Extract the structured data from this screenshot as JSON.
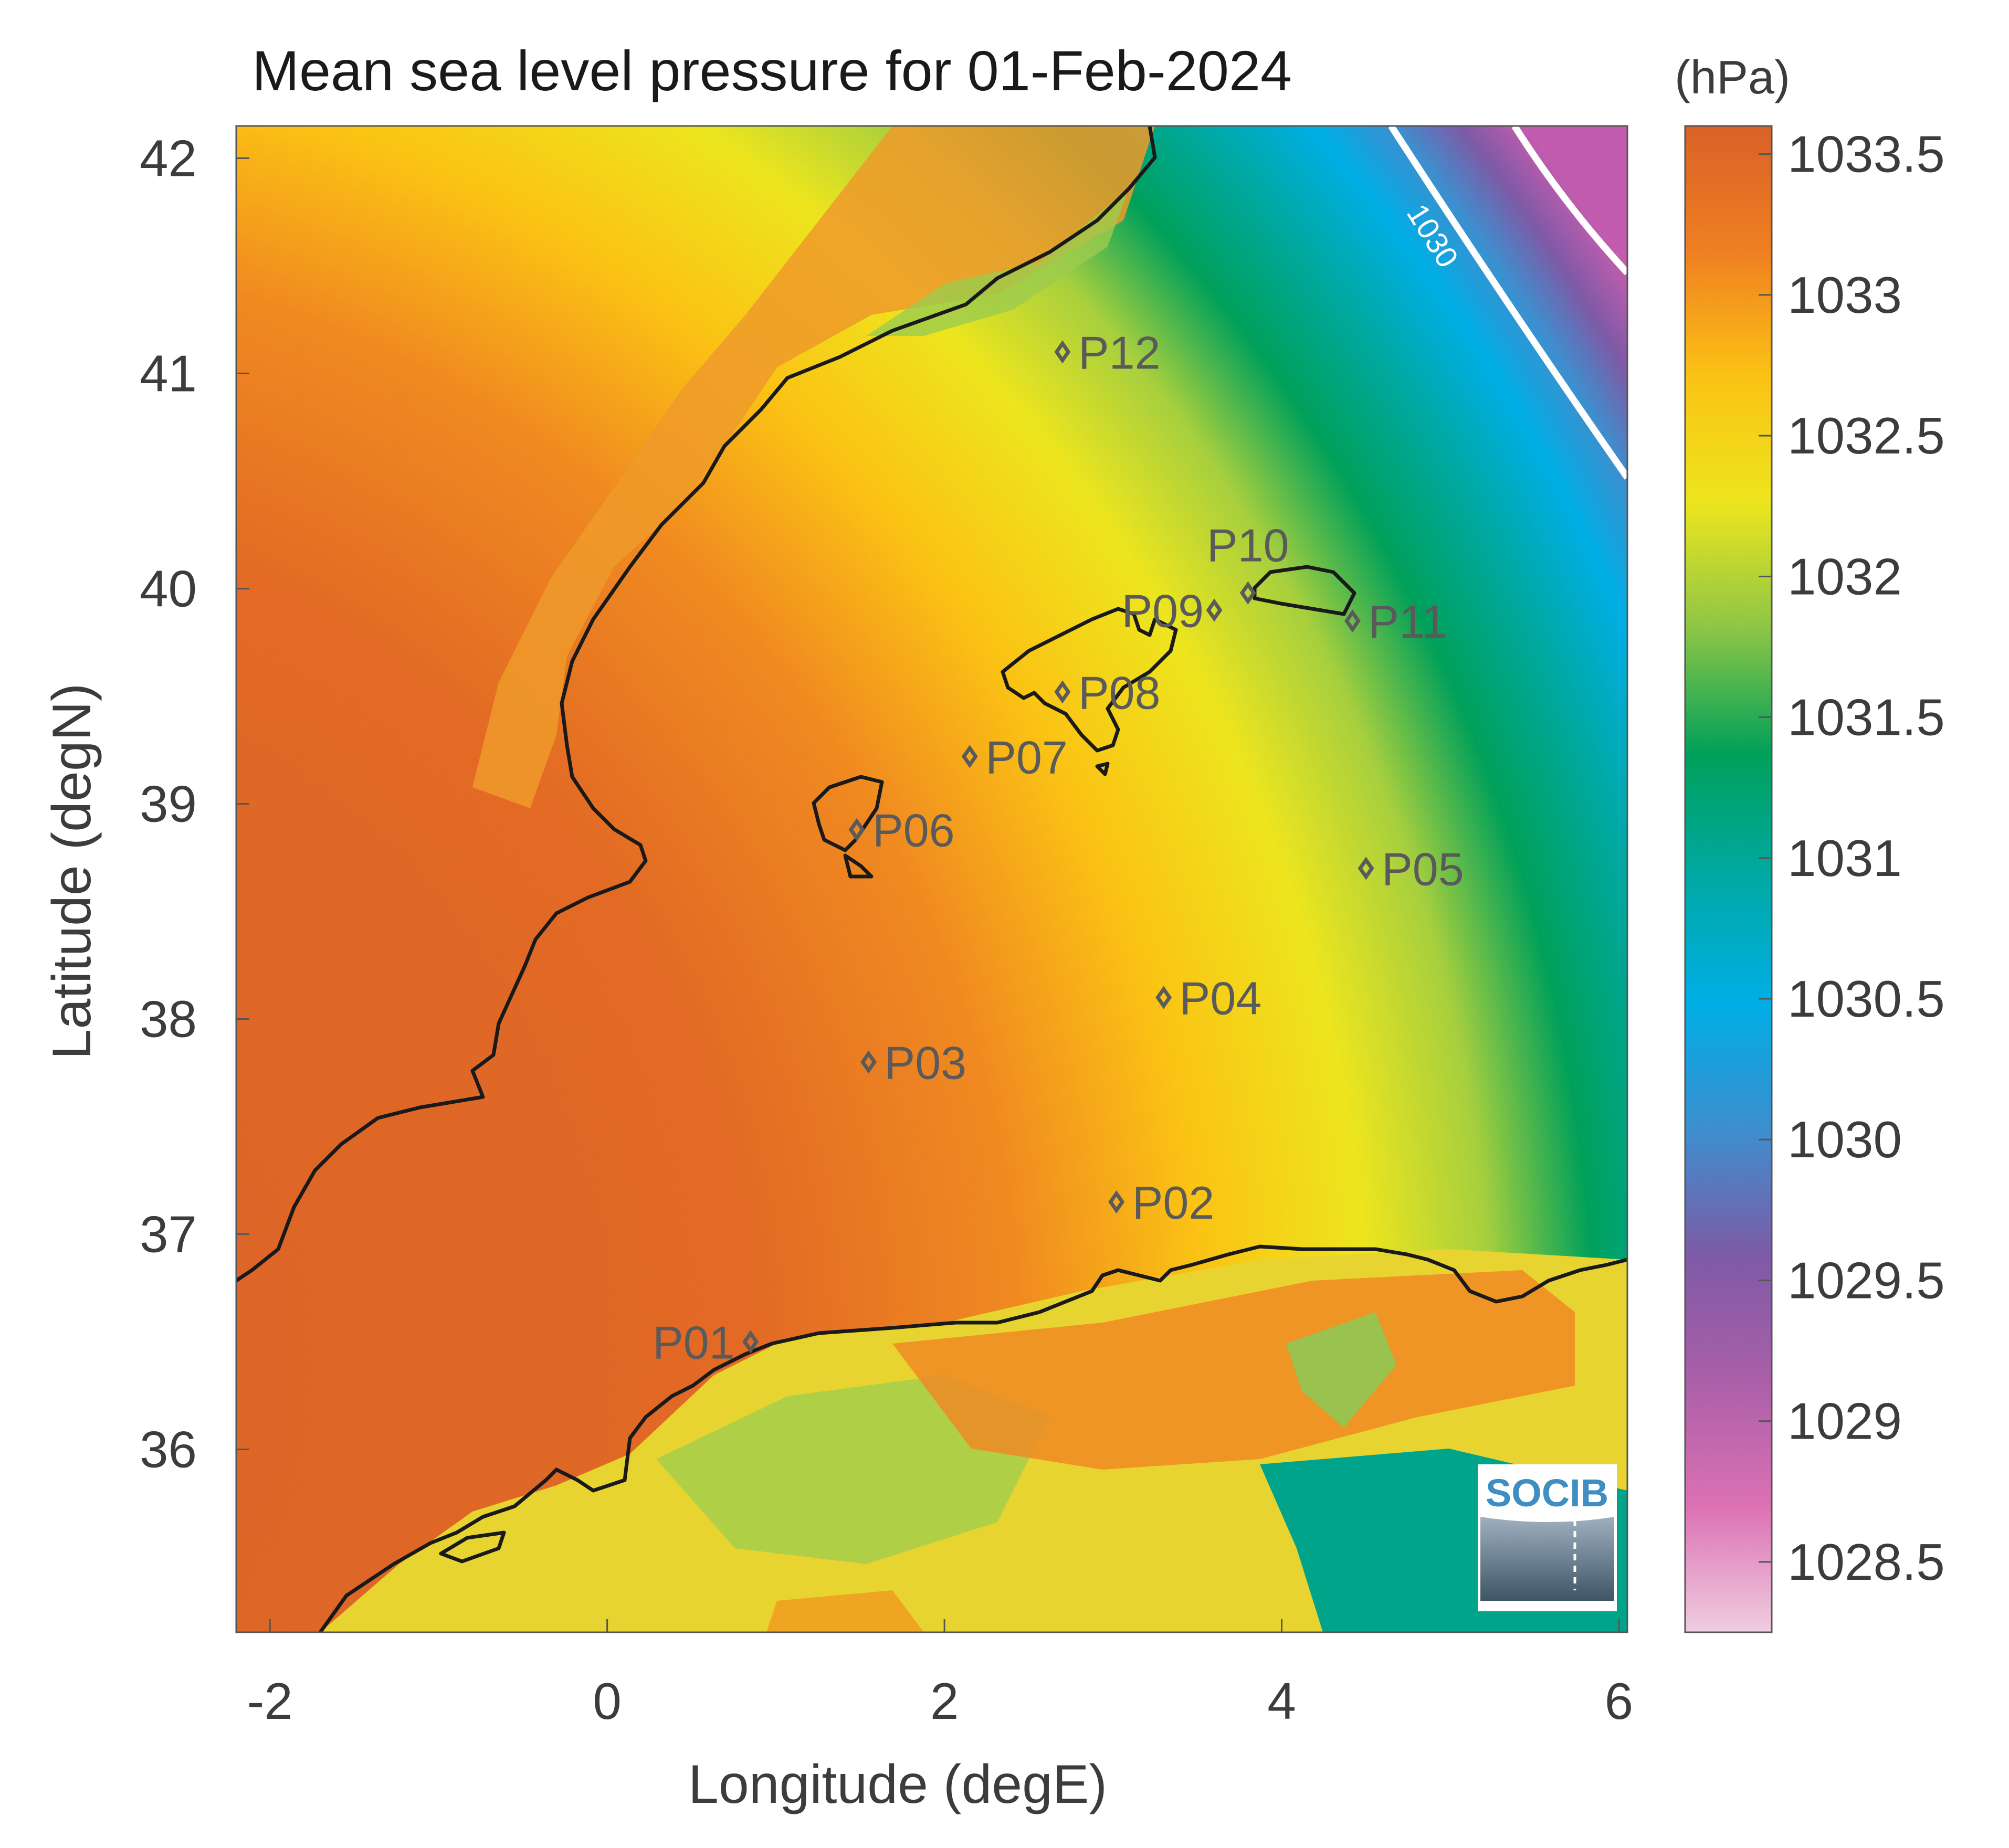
{
  "title": "Mean sea level pressure for 01-Feb-2024",
  "colorbar": {
    "unit": "(hPa)",
    "range": [
      1028.25,
      1033.6
    ],
    "ticks": [
      "1033.5",
      "1033",
      "1032.5",
      "1032",
      "1031.5",
      "1031",
      "1030.5",
      "1030",
      "1029.5",
      "1029",
      "1028.5"
    ],
    "colors": [
      "#f0cde0",
      "#dc72b4",
      "#aa5fa8",
      "#7e5aa6",
      "#3e8ece",
      "#00aee6",
      "#00a9a5",
      "#00a05a",
      "#8dc646",
      "#ede51e",
      "#fbc314",
      "#ef7f22",
      "#d96128"
    ]
  },
  "x_axis": {
    "label": "Longitude (degE)",
    "range": [
      -2.2,
      6.05
    ],
    "ticks": [
      "-2",
      "0",
      "2",
      "4",
      "6"
    ]
  },
  "y_axis": {
    "label": "Latitude (degN)",
    "range": [
      35.15,
      42.15
    ],
    "ticks": [
      "42",
      "41",
      "40",
      "39",
      "38",
      "37",
      "36"
    ]
  },
  "contour": {
    "label": "1030"
  },
  "stations": [
    {
      "id": "P01",
      "lon": 0.85,
      "lat": 36.5
    },
    {
      "id": "P02",
      "lon": 3.02,
      "lat": 37.15
    },
    {
      "id": "P03",
      "lon": 1.55,
      "lat": 37.8
    },
    {
      "id": "P04",
      "lon": 3.3,
      "lat": 38.1
    },
    {
      "id": "P05",
      "lon": 4.5,
      "lat": 38.7
    },
    {
      "id": "P06",
      "lon": 1.48,
      "lat": 38.88
    },
    {
      "id": "P07",
      "lon": 2.15,
      "lat": 39.22
    },
    {
      "id": "P08",
      "lon": 2.7,
      "lat": 39.52
    },
    {
      "id": "P09",
      "lon": 3.6,
      "lat": 39.9
    },
    {
      "id": "P10",
      "lon": 3.8,
      "lat": 39.98
    },
    {
      "id": "P11",
      "lon": 4.42,
      "lat": 39.85
    },
    {
      "id": "P12",
      "lon": 2.7,
      "lat": 41.1
    }
  ],
  "logo": {
    "text": "SOCIB"
  }
}
